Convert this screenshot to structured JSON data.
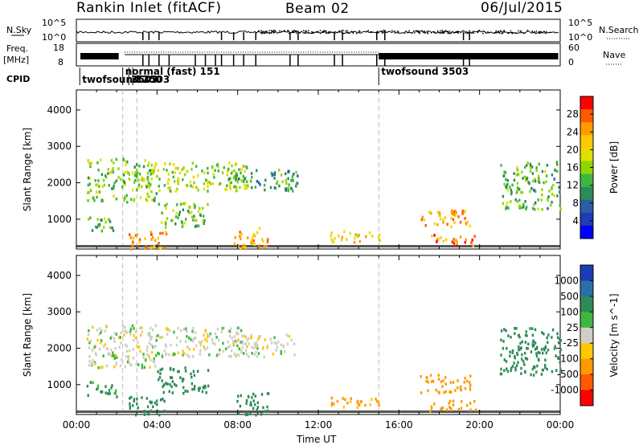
{
  "header": {
    "left_title": "Rankin Inlet (fitACF)",
    "center_title": "Beam 02",
    "right_title": "06/Jul/2015"
  },
  "strip_labels": {
    "nsky": "N.Sky",
    "nsky_ticks": [
      "10^5",
      "10^0"
    ],
    "nsearch": "N.Search",
    "nsearch_ticks": [
      "10^5",
      "10^0"
    ],
    "freq": "Freq.",
    "freq_unit": "[MHz]",
    "freq_ticks": [
      "18",
      "8"
    ],
    "nave": "Nave",
    "nave_ticks": [
      "60",
      "0"
    ],
    "cpid": "CPID"
  },
  "cpid_segments": [
    {
      "label": "twofsound 3503",
      "start_hour": 0.17
    },
    {
      "label": "normal (fast) 151",
      "start_hour": 2.3
    },
    {
      "label": "3503",
      "start_hour": 2.6
    },
    {
      "label": "3200",
      "start_hour": 2.8
    },
    {
      "label": "twofsound 3503",
      "start_hour": 15.0
    }
  ],
  "colorbars": {
    "power": {
      "label": "Power [dB]",
      "ticks": [
        "28",
        "24",
        "20",
        "16",
        "12",
        "8",
        "4"
      ],
      "colors": [
        "#ff0000",
        "#ff5a00",
        "#ff9a00",
        "#ffc800",
        "#e0e000",
        "#8fd600",
        "#3fb63f",
        "#2e8b57",
        "#2a5fa8",
        "#1e3cb4",
        "#0000ff"
      ]
    },
    "velocity": {
      "label": "Velocity [m s^-1]",
      "ticks": [
        "1000",
        "500",
        "100",
        "25",
        "-25",
        "-100",
        "-500",
        "-1000"
      ],
      "colors": [
        "#1e3cb4",
        "#2a6fa8",
        "#2e8b57",
        "#3fb63f",
        "#cfcfc8",
        "#ffc800",
        "#ff9a00",
        "#ff5a00",
        "#ff0000"
      ]
    }
  },
  "chart_data": [
    {
      "type": "scatter",
      "title": "",
      "ylabel": "Slant Range [km]",
      "xlabel": "Time UT",
      "x_ticks": [
        "00:00",
        "04:00",
        "08:00",
        "12:00",
        "16:00",
        "20:00",
        "00:00"
      ],
      "xlim_hours": [
        0,
        24
      ],
      "ylim": [
        180,
        4550
      ],
      "y_ticks": [
        1000,
        2000,
        3000,
        4000
      ],
      "colorbar": "Power [dB]",
      "clusters": [
        {
          "t0": 0.5,
          "t1": 4.0,
          "r0": 1500,
          "r1": 2700,
          "value": 14
        },
        {
          "t0": 3.5,
          "t1": 8.5,
          "r0": 1800,
          "r1": 2600,
          "value": 16
        },
        {
          "t0": 7.5,
          "t1": 11.0,
          "r0": 1800,
          "r1": 2400,
          "value": 10
        },
        {
          "t0": 0.5,
          "t1": 2.0,
          "r0": 700,
          "r1": 1100,
          "value": 12
        },
        {
          "t0": 4.0,
          "t1": 6.5,
          "r0": 800,
          "r1": 1500,
          "value": 14
        },
        {
          "t0": 2.5,
          "t1": 4.5,
          "r0": 200,
          "r1": 700,
          "value": 24
        },
        {
          "t0": 7.8,
          "t1": 9.5,
          "r0": 200,
          "r1": 800,
          "value": 22
        },
        {
          "t0": 12.5,
          "t1": 15.0,
          "r0": 400,
          "r1": 700,
          "value": 20
        },
        {
          "t0": 17.0,
          "t1": 19.5,
          "r0": 800,
          "r1": 1300,
          "value": 22
        },
        {
          "t0": 17.5,
          "t1": 19.8,
          "r0": 300,
          "r1": 600,
          "value": 26
        },
        {
          "t0": 21.0,
          "t1": 24.0,
          "r0": 1300,
          "r1": 2600,
          "value": 12
        }
      ]
    },
    {
      "type": "scatter",
      "title": "",
      "ylabel": "Slant Range [km]",
      "xlabel": "Time UT",
      "x_ticks": [
        "00:00",
        "04:00",
        "08:00",
        "12:00",
        "16:00",
        "20:00",
        "00:00"
      ],
      "xlim_hours": [
        0,
        24
      ],
      "ylim": [
        180,
        4550
      ],
      "y_ticks": [
        1000,
        2000,
        3000,
        4000
      ],
      "colorbar": "Velocity [m s^-1]",
      "clusters": [
        {
          "t0": 0.5,
          "t1": 4.0,
          "r0": 1500,
          "r1": 2700,
          "value": 0
        },
        {
          "t0": 3.5,
          "t1": 8.5,
          "r0": 1800,
          "r1": 2600,
          "value": 0
        },
        {
          "t0": 7.5,
          "t1": 11.0,
          "r0": 1800,
          "r1": 2400,
          "value": 0
        },
        {
          "t0": 0.5,
          "t1": 2.0,
          "r0": 700,
          "r1": 1100,
          "value": 100
        },
        {
          "t0": 4.0,
          "t1": 6.5,
          "r0": 800,
          "r1": 1500,
          "value": 200
        },
        {
          "t0": 2.5,
          "t1": 4.5,
          "r0": 200,
          "r1": 700,
          "value": 300
        },
        {
          "t0": 7.8,
          "t1": 9.5,
          "r0": 200,
          "r1": 800,
          "value": 150
        },
        {
          "t0": 12.5,
          "t1": 15.0,
          "r0": 400,
          "r1": 700,
          "value": -120
        },
        {
          "t0": 17.0,
          "t1": 19.5,
          "r0": 800,
          "r1": 1300,
          "value": -200
        },
        {
          "t0": 17.5,
          "t1": 19.8,
          "r0": 300,
          "r1": 600,
          "value": -150
        },
        {
          "t0": 21.0,
          "t1": 24.0,
          "r0": 1300,
          "r1": 2600,
          "value": 300
        }
      ]
    }
  ]
}
